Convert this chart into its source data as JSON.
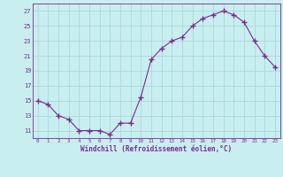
{
  "x": [
    0,
    1,
    2,
    3,
    4,
    5,
    6,
    7,
    8,
    9,
    10,
    11,
    12,
    13,
    14,
    15,
    16,
    17,
    18,
    19,
    20,
    21,
    22,
    23
  ],
  "y": [
    15,
    14.5,
    13,
    12.5,
    11,
    11,
    11,
    10.5,
    12,
    12,
    15.5,
    20.5,
    22,
    23,
    23.5,
    25,
    26,
    26.5,
    27,
    26.5,
    25.5,
    23,
    21,
    19.5
  ],
  "line_color": "#7b2d8b",
  "marker": "*",
  "marker_size": 3,
  "bg_color": "#c8eef0",
  "grid_color": "#aad8dc",
  "xlabel": "Windchill (Refroidissement éolien,°C)",
  "xlabel_color": "#7b2d8b",
  "ylabel_ticks": [
    11,
    13,
    15,
    17,
    19,
    21,
    23,
    25,
    27
  ],
  "xlim": [
    -0.5,
    23.5
  ],
  "ylim": [
    10.0,
    28.0
  ],
  "title": ""
}
